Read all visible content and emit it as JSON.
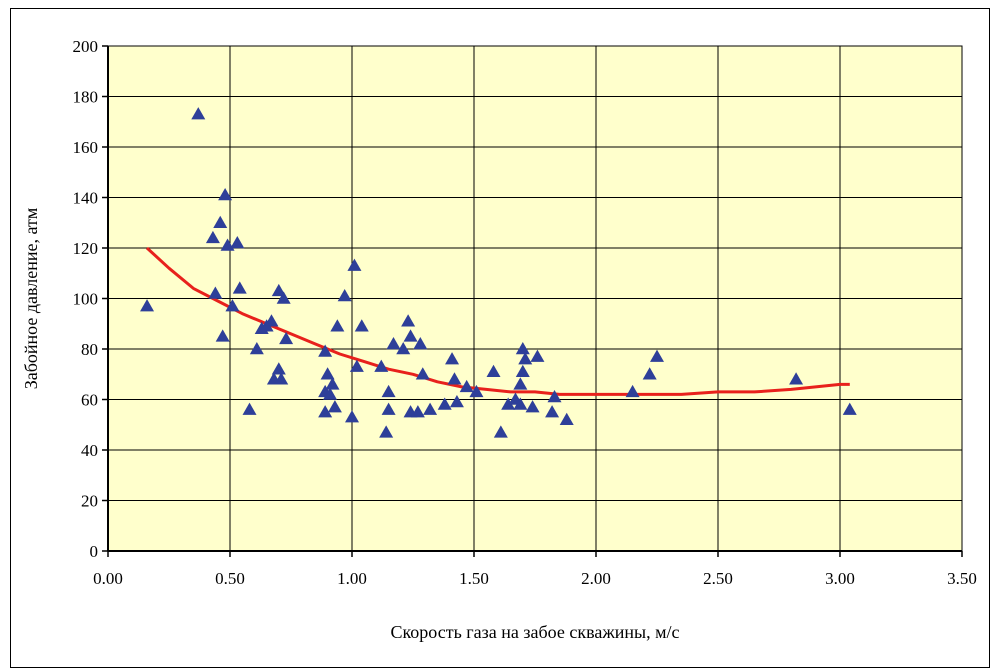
{
  "chart_data": {
    "type": "scatter",
    "title": "",
    "xlabel": "Скорость газа на забое скважины, м/с",
    "ylabel": "Забойное давление, атм",
    "xlim": [
      0,
      3.5
    ],
    "ylim": [
      0,
      200
    ],
    "x_ticks": [
      "0.00",
      "0.50",
      "1.00",
      "1.50",
      "2.00",
      "2.50",
      "3.00",
      "3.50"
    ],
    "y_ticks": [
      "0",
      "20",
      "40",
      "60",
      "80",
      "100",
      "120",
      "140",
      "160",
      "180",
      "200"
    ],
    "grid": true,
    "legend": "none",
    "colors": {
      "plot_background": "#FFFFCC",
      "markers": "#2E3F99",
      "trend_line": "#E8211C",
      "grid": "#000000"
    },
    "series": [
      {
        "type": "scatter",
        "marker": "triangle",
        "points": [
          [
            0.16,
            97
          ],
          [
            0.37,
            173
          ],
          [
            0.43,
            124
          ],
          [
            0.44,
            102
          ],
          [
            0.46,
            130
          ],
          [
            0.47,
            85
          ],
          [
            0.48,
            141
          ],
          [
            0.49,
            121
          ],
          [
            0.51,
            97
          ],
          [
            0.53,
            122
          ],
          [
            0.54,
            104
          ],
          [
            0.58,
            56
          ],
          [
            0.61,
            80
          ],
          [
            0.63,
            88
          ],
          [
            0.65,
            89
          ],
          [
            0.67,
            91
          ],
          [
            0.68,
            68
          ],
          [
            0.7,
            103
          ],
          [
            0.7,
            72
          ],
          [
            0.71,
            68
          ],
          [
            0.72,
            100
          ],
          [
            0.73,
            84
          ],
          [
            0.89,
            79
          ],
          [
            0.89,
            55
          ],
          [
            0.89,
            63
          ],
          [
            0.9,
            70
          ],
          [
            0.91,
            62
          ],
          [
            0.92,
            66
          ],
          [
            0.93,
            57
          ],
          [
            0.94,
            89
          ],
          [
            0.97,
            101
          ],
          [
            1.0,
            53
          ],
          [
            1.01,
            113
          ],
          [
            1.02,
            73
          ],
          [
            1.04,
            89
          ],
          [
            1.12,
            73
          ],
          [
            1.14,
            47
          ],
          [
            1.15,
            63
          ],
          [
            1.15,
            56
          ],
          [
            1.17,
            82
          ],
          [
            1.21,
            80
          ],
          [
            1.23,
            91
          ],
          [
            1.24,
            85
          ],
          [
            1.24,
            55
          ],
          [
            1.27,
            55
          ],
          [
            1.28,
            82
          ],
          [
            1.29,
            70
          ],
          [
            1.32,
            56
          ],
          [
            1.38,
            58
          ],
          [
            1.41,
            76
          ],
          [
            1.42,
            68
          ],
          [
            1.43,
            59
          ],
          [
            1.47,
            65
          ],
          [
            1.51,
            63
          ],
          [
            1.58,
            71
          ],
          [
            1.61,
            47
          ],
          [
            1.64,
            58
          ],
          [
            1.67,
            60
          ],
          [
            1.69,
            66
          ],
          [
            1.69,
            58
          ],
          [
            1.7,
            71
          ],
          [
            1.7,
            80
          ],
          [
            1.71,
            76
          ],
          [
            1.74,
            57
          ],
          [
            1.76,
            77
          ],
          [
            1.82,
            55
          ],
          [
            1.83,
            61
          ],
          [
            1.88,
            52
          ],
          [
            2.15,
            63
          ],
          [
            2.22,
            70
          ],
          [
            2.25,
            77
          ],
          [
            2.82,
            68
          ],
          [
            3.04,
            56
          ]
        ]
      },
      {
        "type": "line",
        "points": [
          [
            0.16,
            120
          ],
          [
            0.25,
            112
          ],
          [
            0.35,
            104
          ],
          [
            0.45,
            99
          ],
          [
            0.55,
            94
          ],
          [
            0.65,
            90
          ],
          [
            0.75,
            86
          ],
          [
            0.85,
            82
          ],
          [
            0.95,
            78
          ],
          [
            1.05,
            75
          ],
          [
            1.15,
            72
          ],
          [
            1.25,
            70
          ],
          [
            1.35,
            67
          ],
          [
            1.45,
            65
          ],
          [
            1.55,
            64
          ],
          [
            1.65,
            63
          ],
          [
            1.75,
            63
          ],
          [
            1.85,
            62
          ],
          [
            2.0,
            62
          ],
          [
            2.1,
            62
          ],
          [
            2.2,
            62
          ],
          [
            2.35,
            62
          ],
          [
            2.5,
            63
          ],
          [
            2.65,
            63
          ],
          [
            2.8,
            64
          ],
          [
            2.9,
            65
          ],
          [
            3.0,
            66
          ],
          [
            3.04,
            66
          ]
        ]
      }
    ]
  }
}
